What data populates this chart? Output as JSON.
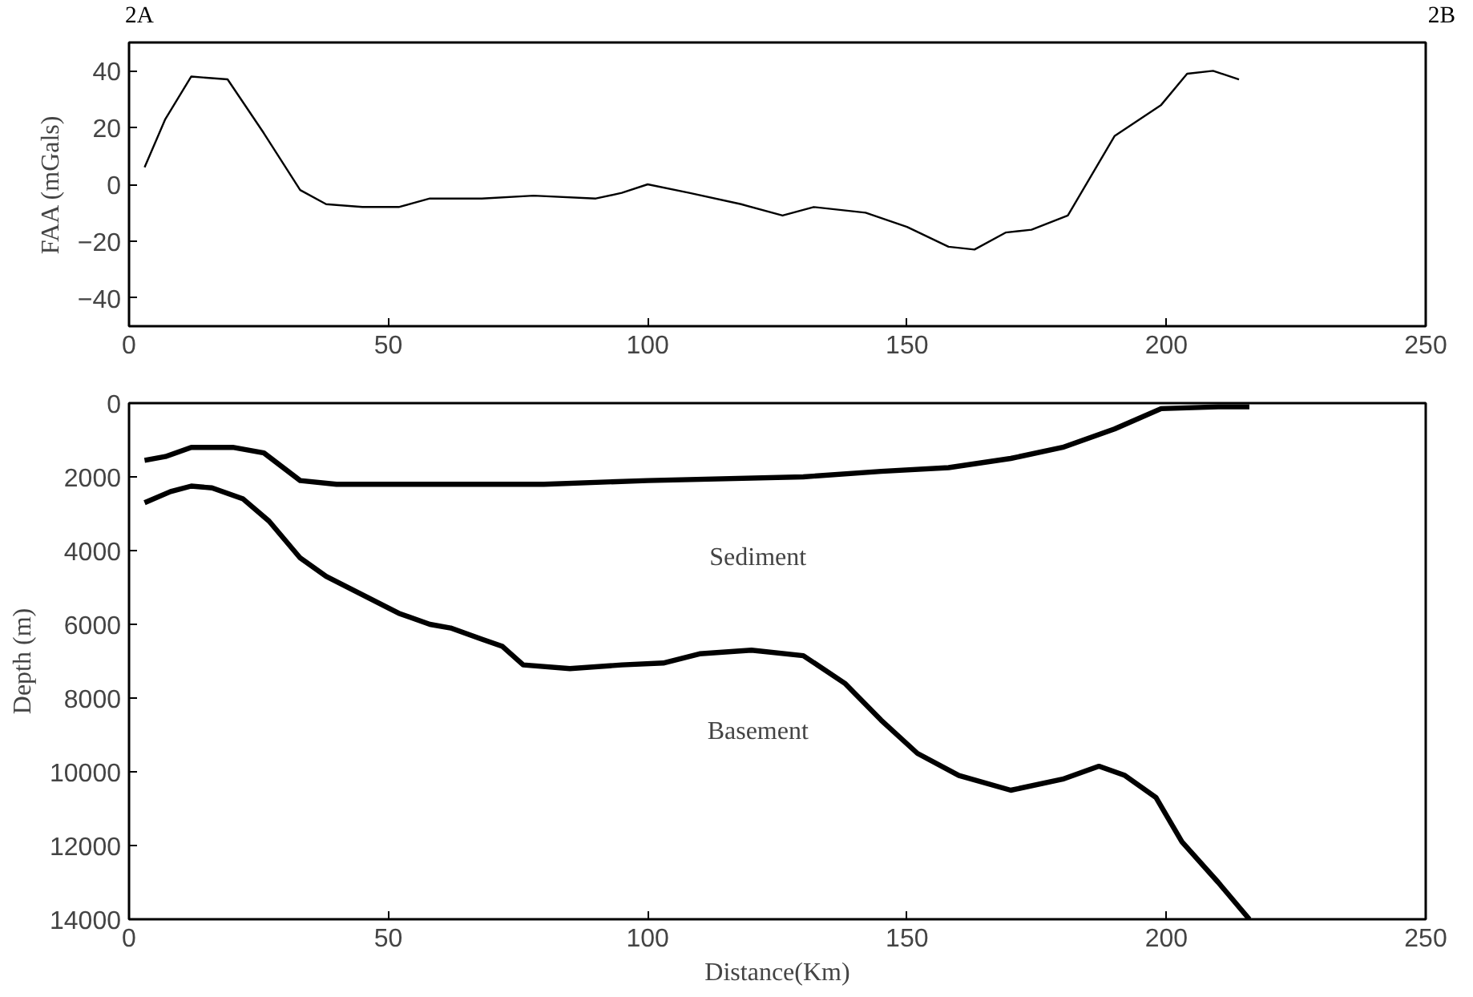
{
  "chart_data": [
    {
      "type": "line",
      "ylabel": "FAA (mGals)",
      "annotations": [
        "2A",
        "2B"
      ],
      "xlim": [
        0,
        250
      ],
      "xticks": [
        0,
        50,
        100,
        150,
        200,
        250
      ],
      "ylim": [
        -50,
        50
      ],
      "yticks": [
        -40,
        -20,
        0,
        20,
        40
      ],
      "grid": false,
      "series": [
        {
          "color": "#000000",
          "x": [
            3,
            7,
            12,
            19,
            26,
            33,
            38,
            45,
            52,
            58,
            68,
            78,
            90,
            95,
            100,
            108,
            118,
            126,
            132,
            142,
            150,
            158,
            163,
            169,
            174,
            181,
            190,
            199,
            204,
            209,
            214
          ],
          "values": [
            6,
            23,
            38,
            37,
            18,
            -2,
            -7,
            -8,
            -8,
            -5,
            -5,
            -4,
            -5,
            -3,
            0,
            -3,
            -7,
            -11,
            -8,
            -10,
            -15,
            -22,
            -23,
            -17,
            -16,
            -11,
            17,
            28,
            39,
            40,
            37
          ]
        }
      ]
    },
    {
      "type": "line",
      "xlabel": "Distance(Km)",
      "ylabel": "Depth (m)",
      "annotations": [
        "Sediment",
        "Basement"
      ],
      "xlim": [
        0,
        250
      ],
      "xticks": [
        0,
        50,
        100,
        150,
        200,
        250
      ],
      "ylim": [
        14000,
        0
      ],
      "yticks": [
        0,
        2000,
        4000,
        6000,
        8000,
        10000,
        12000,
        14000
      ],
      "grid": false,
      "series": [
        {
          "color": "#000000",
          "x": [
            3,
            7,
            12,
            20,
            26,
            33,
            40,
            60,
            80,
            100,
            130,
            145,
            158,
            170,
            180,
            190,
            199,
            210,
            216
          ],
          "values": [
            1550,
            1450,
            1200,
            1200,
            1350,
            2100,
            2200,
            2200,
            2200,
            2100,
            2000,
            1850,
            1750,
            1500,
            1200,
            700,
            150,
            100,
            100
          ]
        },
        {
          "color": "#000000",
          "x": [
            3,
            8,
            12,
            16,
            22,
            27,
            33,
            38,
            45,
            52,
            58,
            62,
            68,
            72,
            76,
            85,
            95,
            103,
            110,
            120,
            130,
            138,
            145,
            152,
            160,
            170,
            180,
            187,
            192,
            198,
            203,
            210,
            216
          ],
          "values": [
            2700,
            2400,
            2250,
            2300,
            2600,
            3200,
            4200,
            4700,
            5200,
            5700,
            6000,
            6100,
            6400,
            6600,
            7100,
            7200,
            7100,
            7050,
            6800,
            6700,
            6850,
            7600,
            8600,
            9500,
            10100,
            10500,
            10200,
            9850,
            10100,
            10700,
            11900,
            13000,
            14000
          ]
        }
      ]
    }
  ]
}
